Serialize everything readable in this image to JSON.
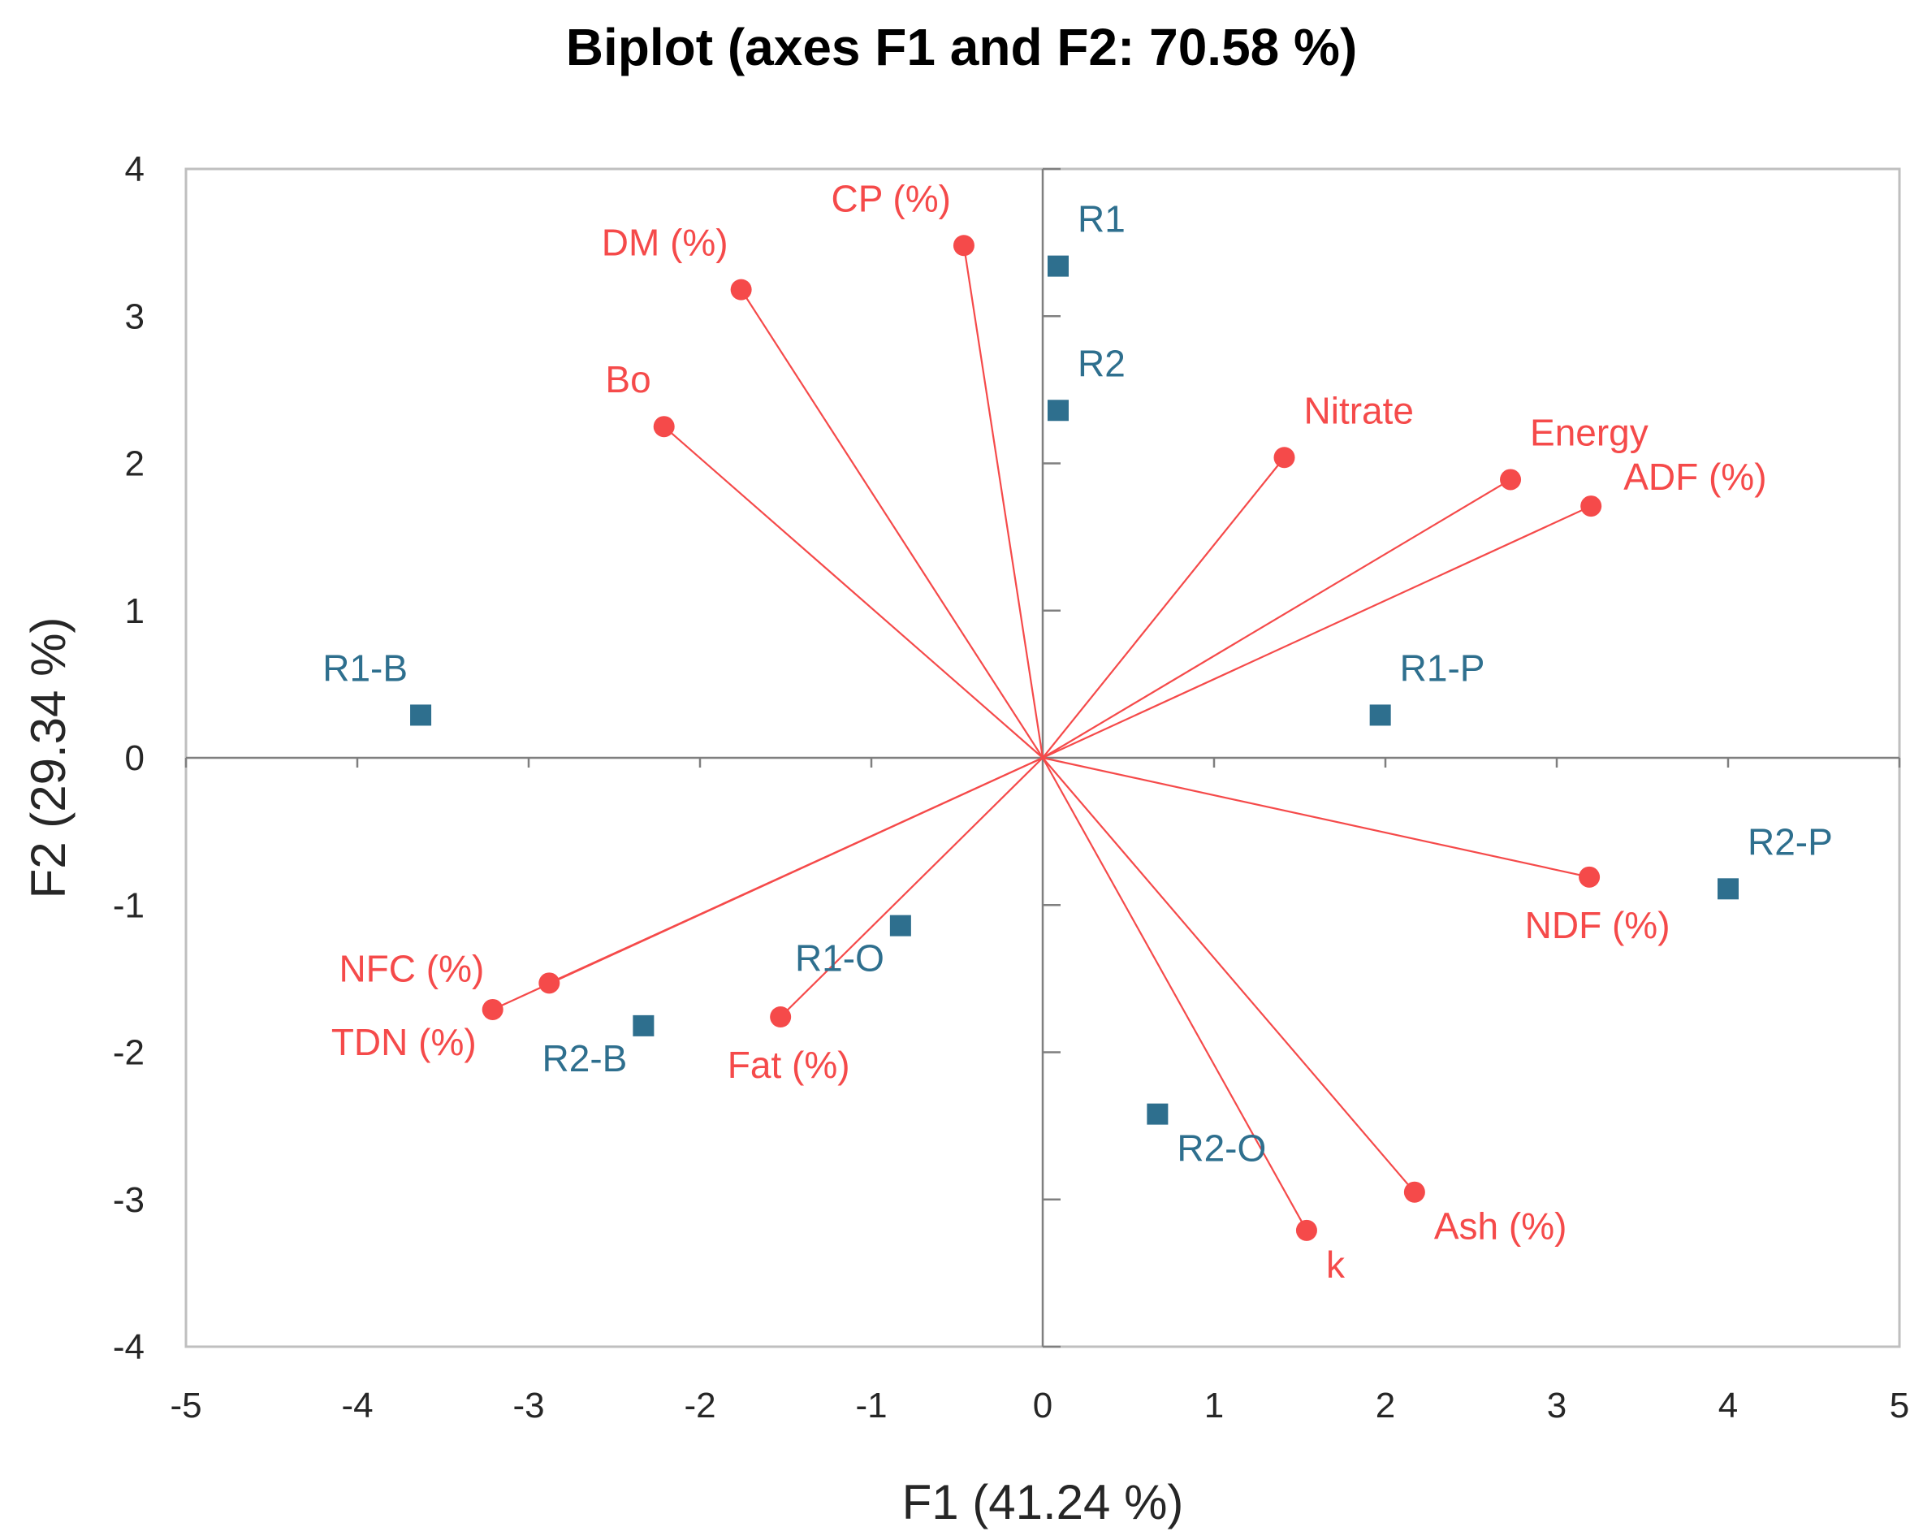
{
  "chart_data": {
    "type": "scatter",
    "title": "Biplot (axes F1 and F2: 70.58 %)",
    "xlabel": "F1 (41.24 %)",
    "ylabel": "F2 (29.34 %)",
    "xlim": [
      -5,
      5
    ],
    "ylim": [
      -4,
      4
    ],
    "xticks": [
      "-5",
      "-4",
      "-3",
      "-2",
      "-1",
      "0",
      "1",
      "2",
      "3",
      "4",
      "5"
    ],
    "yticks": [
      "4",
      "3",
      "2",
      "1",
      "0",
      "-1",
      "-2",
      "-3",
      "-4"
    ],
    "colors": {
      "variables": "#f54a4a",
      "observations": "#2e6f8e",
      "axes": "#7f7f7f"
    },
    "variables": [
      {
        "name": "CP (%)",
        "x": -0.46,
        "y": 3.48,
        "label_pos": "top-left"
      },
      {
        "name": "DM (%)",
        "x": -1.76,
        "y": 3.18,
        "label_pos": "top-left"
      },
      {
        "name": "Bo",
        "x": -2.21,
        "y": 2.25,
        "label_pos": "top-left"
      },
      {
        "name": "Nitrate",
        "x": 1.41,
        "y": 2.04,
        "label_pos": "top-right"
      },
      {
        "name": "Energy",
        "x": 2.73,
        "y": 1.89,
        "label_pos": "top-right"
      },
      {
        "name": "ADF (%)",
        "x": 3.2,
        "y": 1.71,
        "label_pos": "right"
      },
      {
        "name": "NDF (%)",
        "x": 3.19,
        "y": -0.81,
        "label_pos": "bottom"
      },
      {
        "name": "NFC (%)",
        "x": -2.88,
        "y": -1.53,
        "label_pos": "left"
      },
      {
        "name": "TDN (%)",
        "x": -3.21,
        "y": -1.71,
        "label_pos": "bottom-left"
      },
      {
        "name": "Fat (%)",
        "x": -1.53,
        "y": -1.76,
        "label_pos": "bottom"
      },
      {
        "name": "Ash (%)",
        "x": 2.17,
        "y": -2.95,
        "label_pos": "bottom-right"
      },
      {
        "name": "k",
        "x": 1.54,
        "y": -3.21,
        "label_pos": "bottom-right"
      }
    ],
    "observations": [
      {
        "name": "R1",
        "x": 0.09,
        "y": 3.34,
        "label_pos": "top-right"
      },
      {
        "name": "R2",
        "x": 0.09,
        "y": 2.36,
        "label_pos": "top-right"
      },
      {
        "name": "R1-B",
        "x": -3.63,
        "y": 0.29,
        "label_pos": "top-left"
      },
      {
        "name": "R1-P",
        "x": 1.97,
        "y": 0.29,
        "label_pos": "top-right"
      },
      {
        "name": "R2-P",
        "x": 4.0,
        "y": -0.89,
        "label_pos": "top-right"
      },
      {
        "name": "R1-O",
        "x": -0.83,
        "y": -1.14,
        "label_pos": "bottom-left"
      },
      {
        "name": "R2-B",
        "x": -2.33,
        "y": -1.82,
        "label_pos": "bottom-left"
      },
      {
        "name": "R2-O",
        "x": 0.67,
        "y": -2.42,
        "label_pos": "bottom-right"
      }
    ]
  }
}
